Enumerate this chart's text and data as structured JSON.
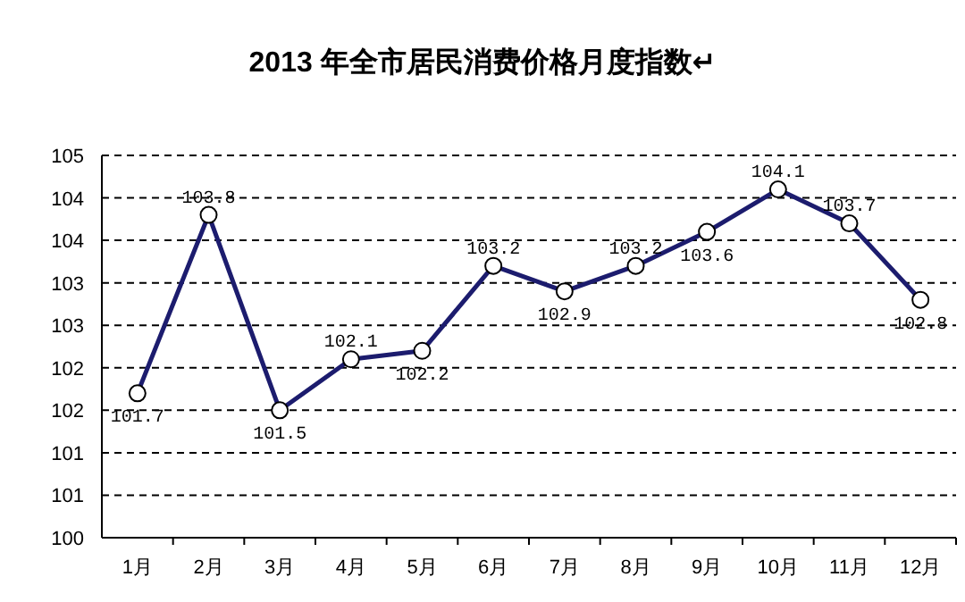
{
  "chart_data": {
    "type": "line",
    "title": "2013 年全市居民消费价格月度指数↵",
    "categories": [
      "1月",
      "2月",
      "3月",
      "4月",
      "5月",
      "6月",
      "7月",
      "8月",
      "9月",
      "10月",
      "11月",
      "12月"
    ],
    "series": [
      {
        "color": "#1c1c6e",
        "values": [
          101.7,
          103.8,
          101.5,
          102.1,
          102.2,
          103.2,
          102.9,
          103.2,
          103.6,
          104.1,
          103.7,
          102.8
        ]
      }
    ],
    "ylim": [
      100,
      104.5
    ],
    "yticks": [
      {
        "value": 100,
        "label": "100"
      },
      {
        "value": 100.5,
        "label": "101"
      },
      {
        "value": 101,
        "label": "101"
      },
      {
        "value": 101.5,
        "label": "102"
      },
      {
        "value": 102,
        "label": "102"
      },
      {
        "value": 102.5,
        "label": "103"
      },
      {
        "value": 103,
        "label": "103"
      },
      {
        "value": 103.5,
        "label": "104"
      },
      {
        "value": 104,
        "label": "104"
      },
      {
        "value": 104.5,
        "label": "105"
      }
    ],
    "grid": "y",
    "marker": "circle",
    "line_style": "solid",
    "data_labels": true
  }
}
